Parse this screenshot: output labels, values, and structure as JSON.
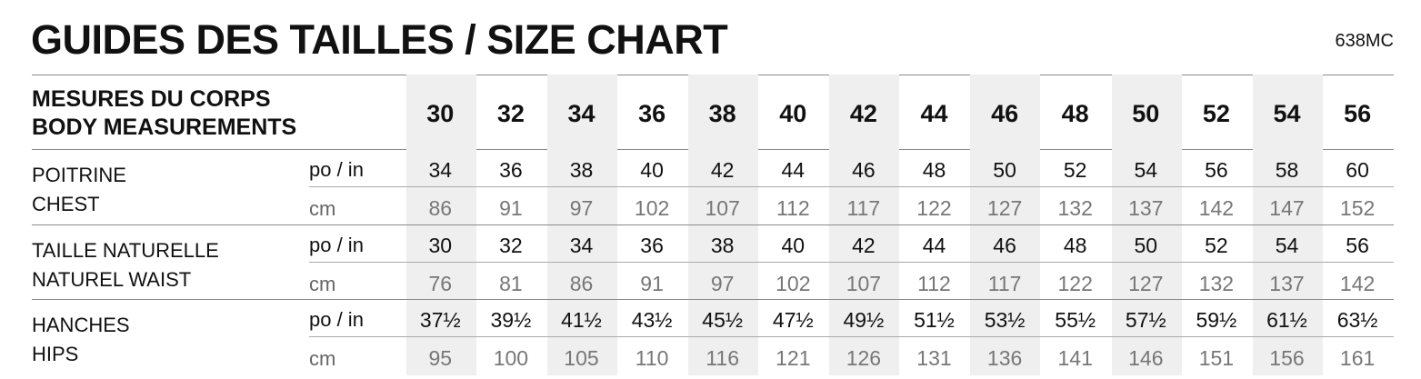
{
  "title": "GUIDES DES TAILLES / SIZE CHART",
  "code": "638MC",
  "header": {
    "line1": "MESURES DU CORPS",
    "line2": "BODY MEASUREMENTS"
  },
  "sizes": [
    "30",
    "32",
    "34",
    "36",
    "38",
    "40",
    "42",
    "44",
    "46",
    "48",
    "50",
    "52",
    "54",
    "56"
  ],
  "shade_color": "#efeff0",
  "units": {
    "in": "po / in",
    "cm": "cm"
  },
  "rows": [
    {
      "label_fr": "POITRINE",
      "label_en": "CHEST",
      "in": [
        "34",
        "36",
        "38",
        "40",
        "42",
        "44",
        "46",
        "48",
        "50",
        "52",
        "54",
        "56",
        "58",
        "60"
      ],
      "cm": [
        "86",
        "91",
        "97",
        "102",
        "107",
        "112",
        "117",
        "122",
        "127",
        "132",
        "137",
        "142",
        "147",
        "152"
      ]
    },
    {
      "label_fr": "TAILLE NATURELLE",
      "label_en": "NATUREL WAIST",
      "in": [
        "30",
        "32",
        "34",
        "36",
        "38",
        "40",
        "42",
        "44",
        "46",
        "48",
        "50",
        "52",
        "54",
        "56"
      ],
      "cm": [
        "76",
        "81",
        "86",
        "91",
        "97",
        "102",
        "107",
        "112",
        "117",
        "122",
        "127",
        "132",
        "137",
        "142"
      ]
    },
    {
      "label_fr": "HANCHES",
      "label_en": "HIPS",
      "in": [
        "37½",
        "39½",
        "41½",
        "43½",
        "45½",
        "47½",
        "49½",
        "51½",
        "53½",
        "55½",
        "57½",
        "59½",
        "61½",
        "63½"
      ],
      "cm": [
        "95",
        "100",
        "105",
        "110",
        "116",
        "121",
        "126",
        "131",
        "136",
        "141",
        "146",
        "151",
        "156",
        "161"
      ]
    }
  ]
}
